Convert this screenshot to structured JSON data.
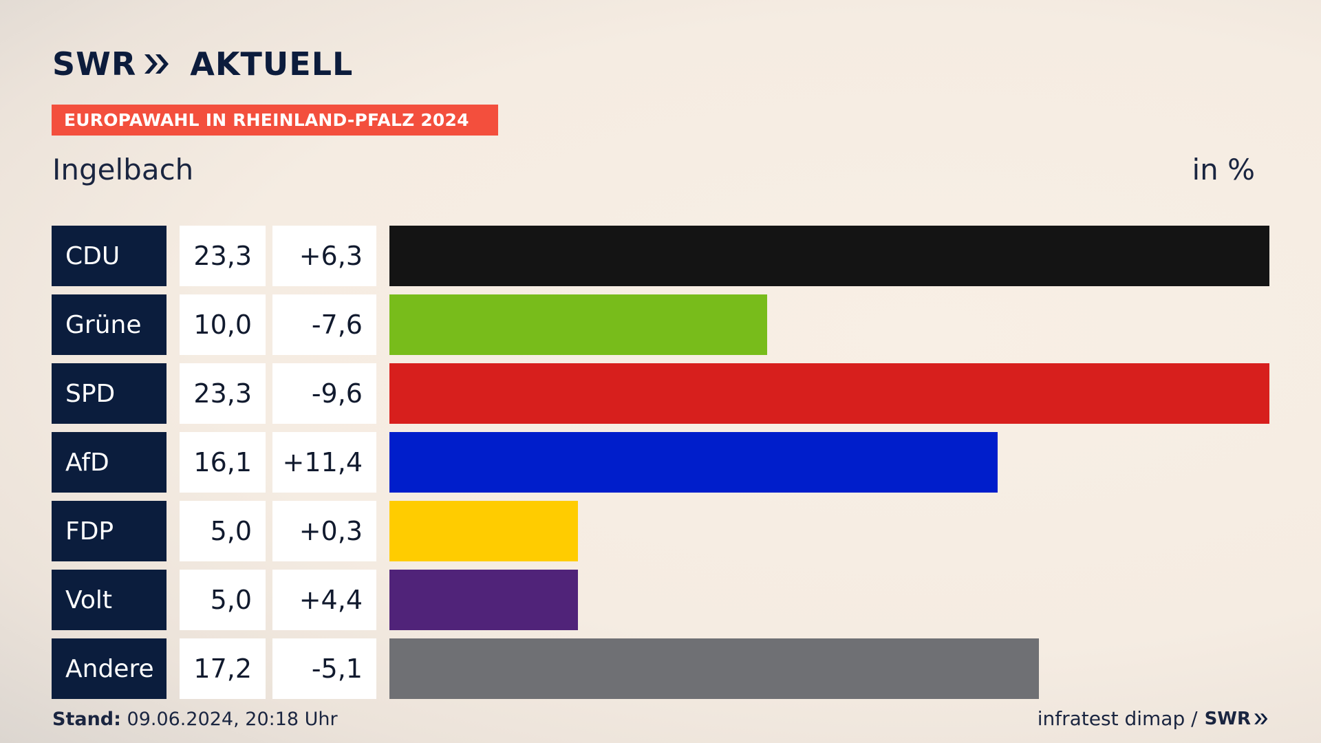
{
  "brand": {
    "left": "SWR",
    "right": "AKTUELL"
  },
  "banner": {
    "text": "EUROPAWAHL IN RHEINLAND-PFALZ 2024"
  },
  "region": "Ingelbach",
  "unit": "in %",
  "colors": {
    "navy": "#0b1d3d",
    "banner": "#f34f3d"
  },
  "chart_data": {
    "type": "bar",
    "orientation": "horizontal",
    "title": "Europawahl in Rheinland-Pfalz 2024 – Ingelbach",
    "unit": "in %",
    "xlim": [
      0,
      23.3
    ],
    "rows": [
      {
        "party": "CDU",
        "value": 23.3,
        "value_label": "23,3",
        "diff_label": "+6,3",
        "color": "#141414"
      },
      {
        "party": "Grüne",
        "value": 10.0,
        "value_label": "10,0",
        "diff_label": "-7,6",
        "color": "#78bc1b"
      },
      {
        "party": "SPD",
        "value": 23.3,
        "value_label": "23,3",
        "diff_label": "-9,6",
        "color": "#d71f1d"
      },
      {
        "party": "AfD",
        "value": 16.1,
        "value_label": "16,1",
        "diff_label": "+11,4",
        "color": "#001ecb"
      },
      {
        "party": "FDP",
        "value": 5.0,
        "value_label": "5,0",
        "diff_label": "+0,3",
        "color": "#ffcc00"
      },
      {
        "party": "Volt",
        "value": 5.0,
        "value_label": "5,0",
        "diff_label": "+4,4",
        "color": "#502379"
      },
      {
        "party": "Andere",
        "value": 17.2,
        "value_label": "17,2",
        "diff_label": "-5,1",
        "color": "#6f7074"
      }
    ]
  },
  "footer": {
    "stand_label": "Stand:",
    "stand_value": "09.06.2024, 20:18 Uhr",
    "source": "infratest dimap /",
    "source_brand": "SWR"
  }
}
